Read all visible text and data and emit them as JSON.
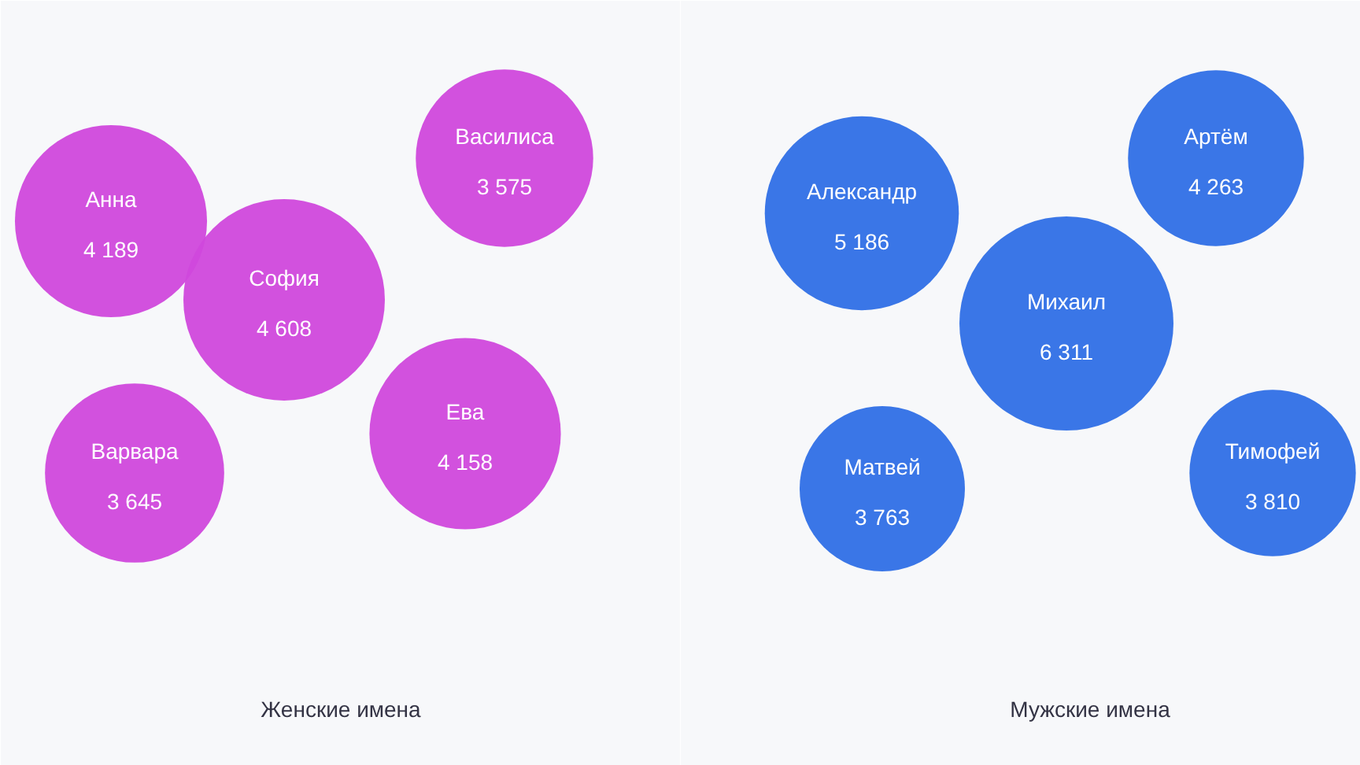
{
  "chart_data": [
    {
      "type": "other",
      "xlabel": "Женские имена",
      "color": "#d048dc",
      "categories": [
        "Анна",
        "София",
        "Василиса",
        "Ева",
        "Варвара"
      ],
      "values": [
        4189,
        4608,
        3575,
        4158,
        3645
      ],
      "value_labels": [
        "4 189",
        "4 608",
        "3 575",
        "4 158",
        "3 645"
      ]
    },
    {
      "type": "other",
      "xlabel": "Мужские имена",
      "color": "#2f6fe6",
      "categories": [
        "Александр",
        "Михаил",
        "Артём",
        "Матвей",
        "Тимофей"
      ],
      "values": [
        5186,
        6311,
        4263,
        3763,
        3810
      ],
      "value_labels": [
        "5 186",
        "6 311",
        "4 263",
        "3 763",
        "3 810"
      ]
    }
  ]
}
